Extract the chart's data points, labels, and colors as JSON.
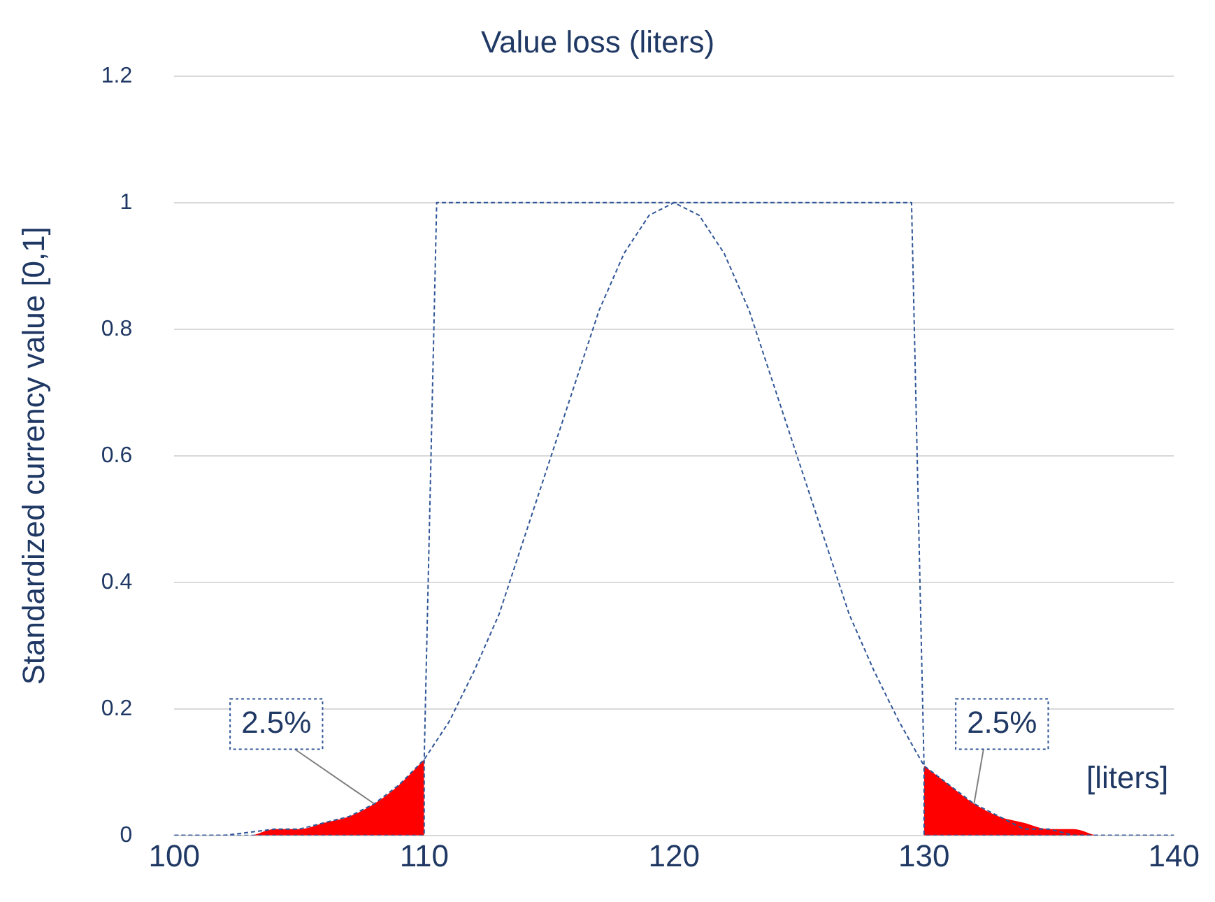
{
  "chart_data": {
    "type": "line",
    "title": "Value loss (liters)",
    "ylabel": "Standardized currency value [0,1]",
    "xlim": [
      100,
      140
    ],
    "xticks": [
      100,
      110,
      120,
      130,
      140
    ],
    "ylim": [
      0,
      1.2
    ],
    "yticks": [
      0,
      0.2,
      0.4,
      0.6,
      0.8,
      1,
      1.2
    ],
    "grid": "y",
    "legend": false,
    "marker": "none",
    "line_style": "dashed",
    "series": [
      {
        "type": "area",
        "color": "#ff0000",
        "x": [
          100,
          101,
          102,
          103,
          104,
          105,
          106,
          107,
          108,
          109,
          110
        ],
        "values": [
          0,
          0,
          0,
          0,
          0.01,
          0.01,
          0.02,
          0.03,
          0.05,
          0.08,
          0.12
        ]
      },
      {
        "type": "area",
        "color": "#ff0000",
        "x": [
          130,
          131,
          132,
          133,
          134,
          135,
          136,
          137,
          138,
          139,
          140
        ],
        "values": [
          0.11,
          0.08,
          0.05,
          0.03,
          0.02,
          0.01,
          0.01,
          0,
          0,
          0,
          0
        ]
      },
      {
        "type": "line",
        "color": "#2f5597",
        "x": [
          100,
          102,
          104,
          105,
          106,
          107,
          108,
          109,
          110,
          111,
          112,
          113,
          114,
          115,
          116,
          117,
          118,
          119,
          120,
          121,
          122,
          123,
          124,
          125,
          126,
          127,
          128,
          129,
          130,
          131,
          132,
          133,
          134,
          135,
          136,
          138,
          140
        ],
        "values": [
          0,
          0,
          0.01,
          0.01,
          0.02,
          0.03,
          0.05,
          0.08,
          0.12,
          0.18,
          0.26,
          0.35,
          0.47,
          0.59,
          0.71,
          0.83,
          0.92,
          0.98,
          1,
          0.98,
          0.92,
          0.83,
          0.71,
          0.59,
          0.47,
          0.35,
          0.26,
          0.18,
          0.11,
          0.08,
          0.05,
          0.03,
          0.01,
          0.01,
          0,
          0,
          0
        ]
      },
      {
        "type": "line",
        "color": "#2f5597",
        "x": [
          100,
          110,
          110,
          110.5,
          129.5,
          130,
          130,
          140
        ],
        "values": [
          0,
          0,
          0.12,
          1,
          1,
          0.11,
          0,
          0
        ]
      }
    ],
    "annotations": [
      {
        "text": "2.5%",
        "x": 108,
        "y": 0.05
      },
      {
        "text": "2.5%",
        "x": 132,
        "y": 0.05
      },
      "[liters]"
    ]
  }
}
